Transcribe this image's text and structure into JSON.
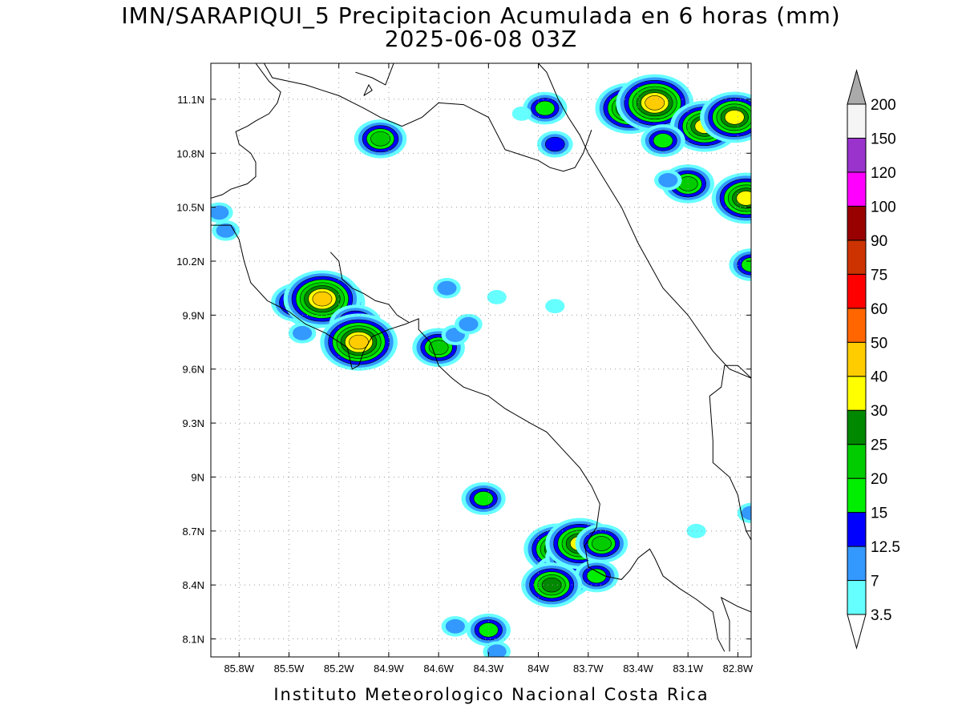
{
  "title": {
    "line1": "IMN/SARAPIQUI_5 Precipitacion Acumulada en 6 horas (mm)",
    "line2": "2025-06-08 03Z"
  },
  "credit": "Instituto Meteorologico Nacional Costa Rica",
  "map": {
    "lon_range": [
      -85.97,
      -82.72
    ],
    "lat_range": [
      8.0,
      11.3
    ],
    "lon_ticks": [
      {
        "value": -85.8,
        "label": "85.8W"
      },
      {
        "value": -85.5,
        "label": "85.5W"
      },
      {
        "value": -85.2,
        "label": "85.2W"
      },
      {
        "value": -84.9,
        "label": "84.9W"
      },
      {
        "value": -84.6,
        "label": "84.6W"
      },
      {
        "value": -84.3,
        "label": "84.3W"
      },
      {
        "value": -84.0,
        "label": "84W"
      },
      {
        "value": -83.7,
        "label": "83.7W"
      },
      {
        "value": -83.4,
        "label": "83.4W"
      },
      {
        "value": -83.1,
        "label": "83.1W"
      },
      {
        "value": -82.8,
        "label": "82.8W"
      }
    ],
    "lat_ticks": [
      {
        "value": 8.1,
        "label": "8.1N"
      },
      {
        "value": 8.4,
        "label": "8.4N"
      },
      {
        "value": 8.7,
        "label": "8.7N"
      },
      {
        "value": 9.0,
        "label": "9N"
      },
      {
        "value": 9.3,
        "label": "9.3N"
      },
      {
        "value": 9.6,
        "label": "9.6N"
      },
      {
        "value": 9.9,
        "label": "9.9N"
      },
      {
        "value": 10.2,
        "label": "10.2N"
      },
      {
        "value": 10.5,
        "label": "10.5N"
      },
      {
        "value": 10.8,
        "label": "10.8N"
      },
      {
        "value": 11.1,
        "label": "11.1N"
      }
    ],
    "grid": "dotted",
    "coastlines": [
      [
        [
          -85.7,
          11.3
        ],
        [
          -85.62,
          11.2
        ],
        [
          -85.55,
          11.14
        ],
        [
          -85.57,
          11.08
        ],
        [
          -85.62,
          11.02
        ],
        [
          -85.7,
          10.98
        ],
        [
          -85.75,
          10.95
        ],
        [
          -85.82,
          10.92
        ],
        [
          -85.8,
          10.85
        ],
        [
          -85.73,
          10.8
        ],
        [
          -85.7,
          10.75
        ],
        [
          -85.7,
          10.67
        ],
        [
          -85.75,
          10.63
        ],
        [
          -85.85,
          10.6
        ],
        [
          -85.9,
          10.57
        ],
        [
          -85.97,
          10.55
        ]
      ],
      [
        [
          -85.97,
          10.4
        ],
        [
          -85.85,
          10.4
        ],
        [
          -85.8,
          10.32
        ],
        [
          -85.77,
          10.2
        ],
        [
          -85.73,
          10.08
        ],
        [
          -85.63,
          9.98
        ],
        [
          -85.5,
          9.92
        ],
        [
          -85.4,
          9.85
        ],
        [
          -85.28,
          9.8
        ],
        [
          -85.15,
          9.72
        ],
        [
          -85.12,
          9.6
        ],
        [
          -85.08,
          9.62
        ],
        [
          -85.05,
          9.7
        ],
        [
          -85.0,
          9.78
        ],
        [
          -84.9,
          9.82
        ],
        [
          -84.8,
          9.85
        ],
        [
          -84.72,
          9.88
        ],
        [
          -84.72,
          9.82
        ],
        [
          -84.65,
          9.75
        ],
        [
          -84.6,
          9.62
        ],
        [
          -84.52,
          9.55
        ],
        [
          -84.45,
          9.5
        ],
        [
          -84.3,
          9.45
        ],
        [
          -84.2,
          9.38
        ],
        [
          -84.05,
          9.3
        ],
        [
          -83.95,
          9.25
        ],
        [
          -83.85,
          9.15
        ],
        [
          -83.75,
          9.05
        ],
        [
          -83.68,
          8.95
        ],
        [
          -83.63,
          8.85
        ],
        [
          -83.65,
          8.72
        ],
        [
          -83.72,
          8.62
        ],
        [
          -83.7,
          8.5
        ],
        [
          -83.6,
          8.45
        ],
        [
          -83.5,
          8.43
        ],
        [
          -83.45,
          8.48
        ],
        [
          -83.4,
          8.55
        ],
        [
          -83.33,
          8.6
        ],
        [
          -83.3,
          8.55
        ],
        [
          -83.25,
          8.45
        ],
        [
          -83.15,
          8.38
        ],
        [
          -83.05,
          8.32
        ],
        [
          -82.95,
          8.25
        ],
        [
          -82.92,
          8.1
        ],
        [
          -82.88,
          8.03
        ]
      ],
      [
        [
          -82.85,
          8.03
        ],
        [
          -82.85,
          8.2
        ],
        [
          -82.9,
          8.33
        ],
        [
          -82.8,
          8.28
        ],
        [
          -82.72,
          8.25
        ]
      ],
      [
        [
          -85.25,
          10.25
        ],
        [
          -85.2,
          10.2
        ],
        [
          -85.18,
          10.1
        ],
        [
          -85.12,
          10.05
        ],
        [
          -85.05,
          10.02
        ],
        [
          -84.98,
          9.98
        ],
        [
          -84.9,
          9.96
        ],
        [
          -84.85,
          9.9
        ],
        [
          -84.78,
          9.86
        ]
      ],
      [
        [
          -84.0,
          11.3
        ],
        [
          -83.95,
          11.25
        ],
        [
          -83.88,
          11.1
        ],
        [
          -83.82,
          11.0
        ],
        [
          -83.75,
          10.9
        ],
        [
          -83.7,
          10.8
        ],
        [
          -83.6,
          10.65
        ],
        [
          -83.5,
          10.5
        ],
        [
          -83.4,
          10.3
        ],
        [
          -83.25,
          10.05
        ],
        [
          -83.1,
          9.9
        ],
        [
          -82.95,
          9.7
        ],
        [
          -82.85,
          9.6
        ],
        [
          -82.72,
          9.55
        ]
      ],
      [
        [
          -82.72,
          9.55
        ],
        [
          -82.8,
          9.62
        ],
        [
          -82.88,
          9.62
        ],
        [
          -82.9,
          9.5
        ],
        [
          -82.97,
          9.45
        ],
        [
          -82.95,
          9.2
        ],
        [
          -82.95,
          9.08
        ],
        [
          -82.85,
          9.0
        ],
        [
          -82.8,
          8.9
        ],
        [
          -82.78,
          8.8
        ],
        [
          -82.75,
          8.7
        ],
        [
          -82.72,
          8.65
        ]
      ],
      [
        [
          -85.65,
          11.3
        ],
        [
          -85.6,
          11.22
        ],
        [
          -85.5,
          11.2
        ],
        [
          -85.4,
          11.18
        ],
        [
          -85.3,
          11.15
        ],
        [
          -85.2,
          11.12
        ],
        [
          -85.05,
          11.05
        ],
        [
          -84.95,
          11.0
        ],
        [
          -84.82,
          10.95
        ],
        [
          -84.7,
          11.0
        ],
        [
          -84.6,
          11.08
        ],
        [
          -84.45,
          11.07
        ],
        [
          -84.3,
          11.0
        ],
        [
          -84.2,
          10.82
        ],
        [
          -84.1,
          10.79
        ],
        [
          -84.0,
          10.76
        ],
        [
          -83.93,
          10.72
        ],
        [
          -83.85,
          10.7
        ],
        [
          -83.78,
          10.72
        ],
        [
          -83.73,
          10.8
        ],
        [
          -83.68,
          10.93
        ]
      ],
      [
        [
          -85.05,
          11.12
        ],
        [
          -85.02,
          11.18
        ],
        [
          -85.0,
          11.15
        ],
        [
          -85.05,
          11.12
        ]
      ],
      [
        [
          -85.1,
          11.25
        ],
        [
          -85.0,
          11.22
        ],
        [
          -84.92,
          11.18
        ],
        [
          -84.87,
          11.3
        ]
      ]
    ]
  },
  "colorbar": {
    "labels": [
      "3.5",
      "7",
      "12.5",
      "15",
      "20",
      "25",
      "30",
      "40",
      "50",
      "60",
      "75",
      "90",
      "100",
      "120",
      "150",
      "200"
    ],
    "colors": [
      "#66ffff",
      "#3399ff",
      "#0000ff",
      "#00ee00",
      "#00cc00",
      "#008800",
      "#ffff00",
      "#ffcc00",
      "#ff6600",
      "#ff0000",
      "#cc3300",
      "#990000",
      "#ff00ff",
      "#9933cc",
      "#f5f5f5",
      "#aaaaaa"
    ]
  },
  "precip_cells": [
    {
      "lon": -85.25,
      "lat": 9.97,
      "value": 35
    },
    {
      "lon": -85.35,
      "lat": 9.95,
      "value": 25
    },
    {
      "lon": -85.45,
      "lat": 9.97,
      "value": 20
    },
    {
      "lon": -85.3,
      "lat": 9.99,
      "value": 45
    },
    {
      "lon": -85.1,
      "lat": 9.85,
      "value": 22
    },
    {
      "lon": -85.08,
      "lat": 9.75,
      "value": 42
    },
    {
      "lon": -85.42,
      "lat": 9.8,
      "value": 8
    },
    {
      "lon": -84.95,
      "lat": 10.88,
      "value": 22
    },
    {
      "lon": -84.55,
      "lat": 10.05,
      "value": 12
    },
    {
      "lon": -84.6,
      "lat": 9.72,
      "value": 20
    },
    {
      "lon": -84.5,
      "lat": 9.79,
      "value": 10
    },
    {
      "lon": -84.42,
      "lat": 9.85,
      "value": 8
    },
    {
      "lon": -84.25,
      "lat": 10.0,
      "value": 5
    },
    {
      "lon": -83.96,
      "lat": 11.05,
      "value": 18
    },
    {
      "lon": -83.9,
      "lat": 10.85,
      "value": 13
    },
    {
      "lon": -84.1,
      "lat": 11.02,
      "value": 6
    },
    {
      "lon": -83.45,
      "lat": 11.05,
      "value": 35
    },
    {
      "lon": -83.3,
      "lat": 11.08,
      "value": 45
    },
    {
      "lon": -83.0,
      "lat": 10.95,
      "value": 38
    },
    {
      "lon": -82.82,
      "lat": 11.0,
      "value": 32
    },
    {
      "lon": -83.25,
      "lat": 10.87,
      "value": 18
    },
    {
      "lon": -83.1,
      "lat": 10.63,
      "value": 22
    },
    {
      "lon": -83.22,
      "lat": 10.65,
      "value": 12
    },
    {
      "lon": -82.75,
      "lat": 10.55,
      "value": 30
    },
    {
      "lon": -82.72,
      "lat": 10.18,
      "value": 15
    },
    {
      "lon": -85.88,
      "lat": 10.37,
      "value": 12
    },
    {
      "lon": -85.92,
      "lat": 10.47,
      "value": 8
    },
    {
      "lon": -83.88,
      "lat": 8.6,
      "value": 32
    },
    {
      "lon": -83.85,
      "lat": 8.45,
      "value": 28
    },
    {
      "lon": -83.8,
      "lat": 8.55,
      "value": 20
    },
    {
      "lon": -83.75,
      "lat": 8.63,
      "value": 30
    },
    {
      "lon": -83.62,
      "lat": 8.63,
      "value": 22
    },
    {
      "lon": -83.65,
      "lat": 8.45,
      "value": 18
    },
    {
      "lon": -83.92,
      "lat": 8.4,
      "value": 28
    },
    {
      "lon": -84.33,
      "lat": 8.88,
      "value": 18
    },
    {
      "lon": -84.3,
      "lat": 8.15,
      "value": 18
    },
    {
      "lon": -84.5,
      "lat": 8.17,
      "value": 8
    },
    {
      "lon": -84.25,
      "lat": 8.03,
      "value": 12
    },
    {
      "lon": -82.72,
      "lat": 8.8,
      "value": 8
    },
    {
      "lon": -83.05,
      "lat": 8.7,
      "value": 5
    },
    {
      "lon": -83.9,
      "lat": 9.95,
      "value": 4
    }
  ]
}
